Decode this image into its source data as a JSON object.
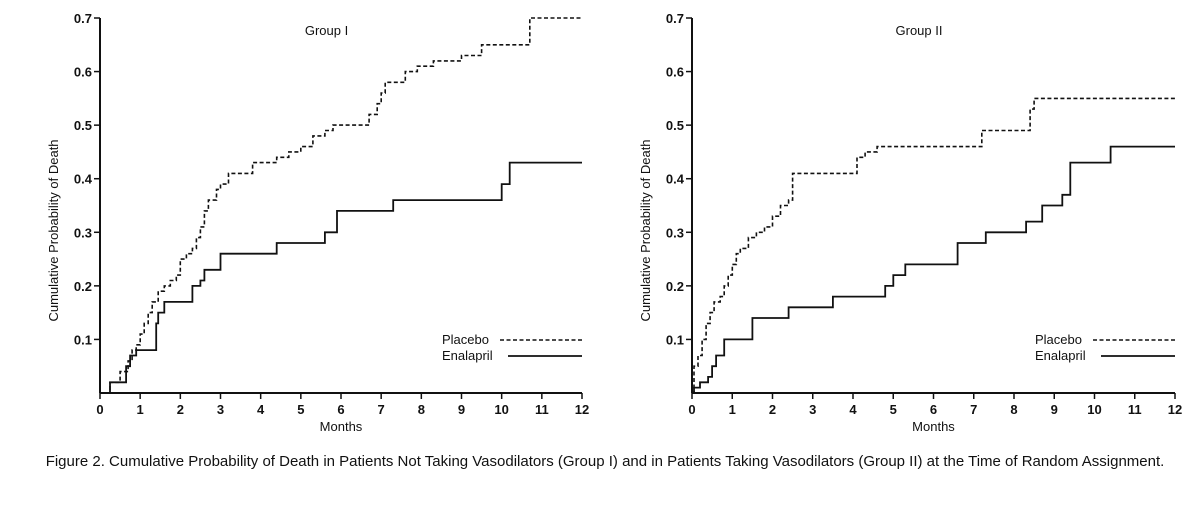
{
  "caption": "Figure 2. Cumulative Probability of Death in Patients Not Taking Vasodilators (Group I) and in Patients Taking Vasodilators (Group II) at the Time of Random Assignment.",
  "chart_data": [
    {
      "type": "line",
      "title": "Group I",
      "xlabel": "Months",
      "ylabel": "Cumulative Probability of Death",
      "xlim": [
        0,
        12
      ],
      "ylim": [
        0,
        0.7
      ],
      "xticks": [
        "0",
        "1",
        "2",
        "3",
        "4",
        "5",
        "6",
        "7",
        "8",
        "9",
        "10",
        "11",
        "12"
      ],
      "yticks": [
        "0.1",
        "0.2",
        "0.3",
        "0.4",
        "0.5",
        "0.6",
        "0.7"
      ],
      "legend_position": "bottom-right",
      "series": [
        {
          "name": "Placebo",
          "style": "dashed",
          "x": [
            0.25,
            0.5,
            0.7,
            0.8,
            0.9,
            1.0,
            1.1,
            1.2,
            1.3,
            1.45,
            1.6,
            1.75,
            1.9,
            2.0,
            2.15,
            2.3,
            2.4,
            2.5,
            2.6,
            2.7,
            2.9,
            3.0,
            3.2,
            3.5,
            3.8,
            4.1,
            4.4,
            4.7,
            5.0,
            5.3,
            5.6,
            5.8,
            6.1,
            6.7,
            6.9,
            7.0,
            7.1,
            7.2,
            7.6,
            7.9,
            8.3,
            9.0,
            9.5,
            10.1,
            10.7,
            12.0
          ],
          "y": [
            0.02,
            0.04,
            0.06,
            0.08,
            0.09,
            0.11,
            0.13,
            0.15,
            0.17,
            0.19,
            0.2,
            0.21,
            0.22,
            0.25,
            0.26,
            0.27,
            0.29,
            0.31,
            0.34,
            0.36,
            0.38,
            0.39,
            0.41,
            0.41,
            0.43,
            0.43,
            0.44,
            0.45,
            0.46,
            0.48,
            0.49,
            0.5,
            0.5,
            0.52,
            0.54,
            0.56,
            0.58,
            0.58,
            0.6,
            0.61,
            0.62,
            0.63,
            0.65,
            0.65,
            0.7,
            0.7
          ]
        },
        {
          "name": "Enalapril",
          "style": "solid",
          "x": [
            0.25,
            0.5,
            0.65,
            0.75,
            0.8,
            0.9,
            1.2,
            1.4,
            1.45,
            1.6,
            1.9,
            2.3,
            2.5,
            2.6,
            3.0,
            4.4,
            5.6,
            5.9,
            7.3,
            10.0,
            10.2,
            12.0
          ],
          "y": [
            0.02,
            0.02,
            0.05,
            0.07,
            0.07,
            0.08,
            0.08,
            0.13,
            0.15,
            0.17,
            0.17,
            0.2,
            0.21,
            0.23,
            0.26,
            0.28,
            0.3,
            0.34,
            0.36,
            0.39,
            0.43,
            0.43
          ]
        }
      ]
    },
    {
      "type": "line",
      "title": "Group II",
      "xlabel": "Months",
      "ylabel": "Cumulative Probability of Death",
      "xlim": [
        0,
        12
      ],
      "ylim": [
        0,
        0.7
      ],
      "xticks": [
        "0",
        "1",
        "2",
        "3",
        "4",
        "5",
        "6",
        "7",
        "8",
        "9",
        "10",
        "11",
        "12"
      ],
      "yticks": [
        "0.1",
        "0.2",
        "0.3",
        "0.4",
        "0.5",
        "0.6",
        "0.7"
      ],
      "legend_position": "bottom-right",
      "series": [
        {
          "name": "Placebo",
          "style": "dashed",
          "x": [
            0.05,
            0.15,
            0.25,
            0.35,
            0.45,
            0.55,
            0.7,
            0.8,
            0.9,
            1.0,
            1.1,
            1.2,
            1.4,
            1.6,
            1.8,
            2.0,
            2.2,
            2.4,
            2.5,
            3.0,
            3.9,
            4.1,
            4.3,
            4.6,
            5.0,
            7.2,
            8.4,
            8.5,
            12.0
          ],
          "y": [
            0.05,
            0.07,
            0.1,
            0.13,
            0.15,
            0.17,
            0.18,
            0.2,
            0.22,
            0.24,
            0.26,
            0.27,
            0.29,
            0.3,
            0.31,
            0.33,
            0.35,
            0.36,
            0.41,
            0.41,
            0.41,
            0.44,
            0.45,
            0.46,
            0.46,
            0.49,
            0.53,
            0.55,
            0.55
          ]
        },
        {
          "name": "Enalapril",
          "style": "solid",
          "x": [
            0.05,
            0.2,
            0.4,
            0.5,
            0.6,
            0.8,
            1.5,
            2.4,
            3.5,
            4.0,
            4.8,
            5.0,
            5.3,
            6.6,
            6.8,
            7.3,
            7.8,
            8.0,
            8.3,
            8.7,
            9.2,
            9.4,
            10.4,
            12.0
          ],
          "y": [
            0.01,
            0.02,
            0.03,
            0.05,
            0.07,
            0.1,
            0.14,
            0.16,
            0.18,
            0.18,
            0.2,
            0.22,
            0.24,
            0.28,
            0.28,
            0.3,
            0.3,
            0.3,
            0.32,
            0.35,
            0.37,
            0.43,
            0.46,
            0.46
          ]
        }
      ]
    }
  ]
}
